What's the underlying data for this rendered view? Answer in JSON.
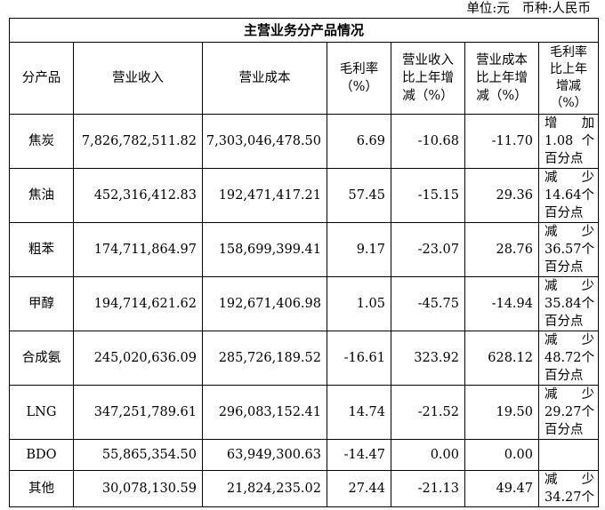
{
  "unit_line": "单位:元   币种:人民币",
  "table": {
    "title": "主营业务分产品情况",
    "headers": {
      "product": "分产品",
      "revenue": "营业收入",
      "cost": "营业成本",
      "margin": [
        "毛利率",
        "（%）"
      ],
      "revenue_change": [
        "营业收入",
        "比上年增",
        "减（%）"
      ],
      "cost_change": [
        "营业成本",
        "比上年增",
        "减（%）"
      ],
      "margin_change": [
        "毛利率",
        "比上年",
        "增减",
        "（%）"
      ]
    },
    "rows": [
      {
        "product": "焦炭",
        "revenue": "7,826,782,511.82",
        "cost": "7,303,046,478.50",
        "margin": "6.69",
        "revenue_change": "-10.68",
        "cost_change": "-11.70",
        "margin_change": {
          "dir": [
            "增",
            "加"
          ],
          "amt": "1.08",
          "unit": "个",
          "tail": "百分点"
        }
      },
      {
        "product": "焦油",
        "revenue": "452,316,412.83",
        "cost": "192,471,417.21",
        "margin": "57.45",
        "revenue_change": "-15.15",
        "cost_change": "29.36",
        "margin_change": {
          "dir": [
            "减",
            "少"
          ],
          "amt": "14.64",
          "unit": "个",
          "tail": "百分点"
        }
      },
      {
        "product": "粗苯",
        "revenue": "174,711,864.97",
        "cost": "158,699,399.41",
        "margin": "9.17",
        "revenue_change": "-23.07",
        "cost_change": "28.76",
        "margin_change": {
          "dir": [
            "减",
            "少"
          ],
          "amt": "36.57",
          "unit": "个",
          "tail": "百分点"
        }
      },
      {
        "product": "甲醇",
        "revenue": "194,714,621.62",
        "cost": "192,671,406.98",
        "margin": "1.05",
        "revenue_change": "-45.75",
        "cost_change": "-14.94",
        "margin_change": {
          "dir": [
            "减",
            "少"
          ],
          "amt": "35.84",
          "unit": "个",
          "tail": "百分点"
        }
      },
      {
        "product": "合成氨",
        "revenue": "245,020,636.09",
        "cost": "285,726,189.52",
        "margin": "-16.61",
        "revenue_change": "323.92",
        "cost_change": "628.12",
        "margin_change": {
          "dir": [
            "减",
            "少"
          ],
          "amt": "48.72",
          "unit": "个",
          "tail": "百分点"
        }
      },
      {
        "product": "LNG",
        "revenue": "347,251,789.61",
        "cost": "296,083,152.41",
        "margin": "14.74",
        "revenue_change": "-21.52",
        "cost_change": "19.50",
        "margin_change": {
          "dir": [
            "减",
            "少"
          ],
          "amt": "29.27",
          "unit": "个",
          "tail": "百分点"
        }
      },
      {
        "product": "BDO",
        "revenue": "55,865,354.50",
        "cost": "63,949,300.63",
        "margin": "-14.47",
        "revenue_change": "0.00",
        "cost_change": "0.00",
        "margin_change": null
      },
      {
        "product": "其他",
        "revenue": "30,078,130.59",
        "cost": "21,824,235.02",
        "margin": "27.44",
        "revenue_change": "-21.13",
        "cost_change": "49.47",
        "margin_change": {
          "dir": [
            "减",
            "少"
          ],
          "amt": "34.27",
          "unit": "个",
          "tail": ""
        }
      }
    ]
  }
}
